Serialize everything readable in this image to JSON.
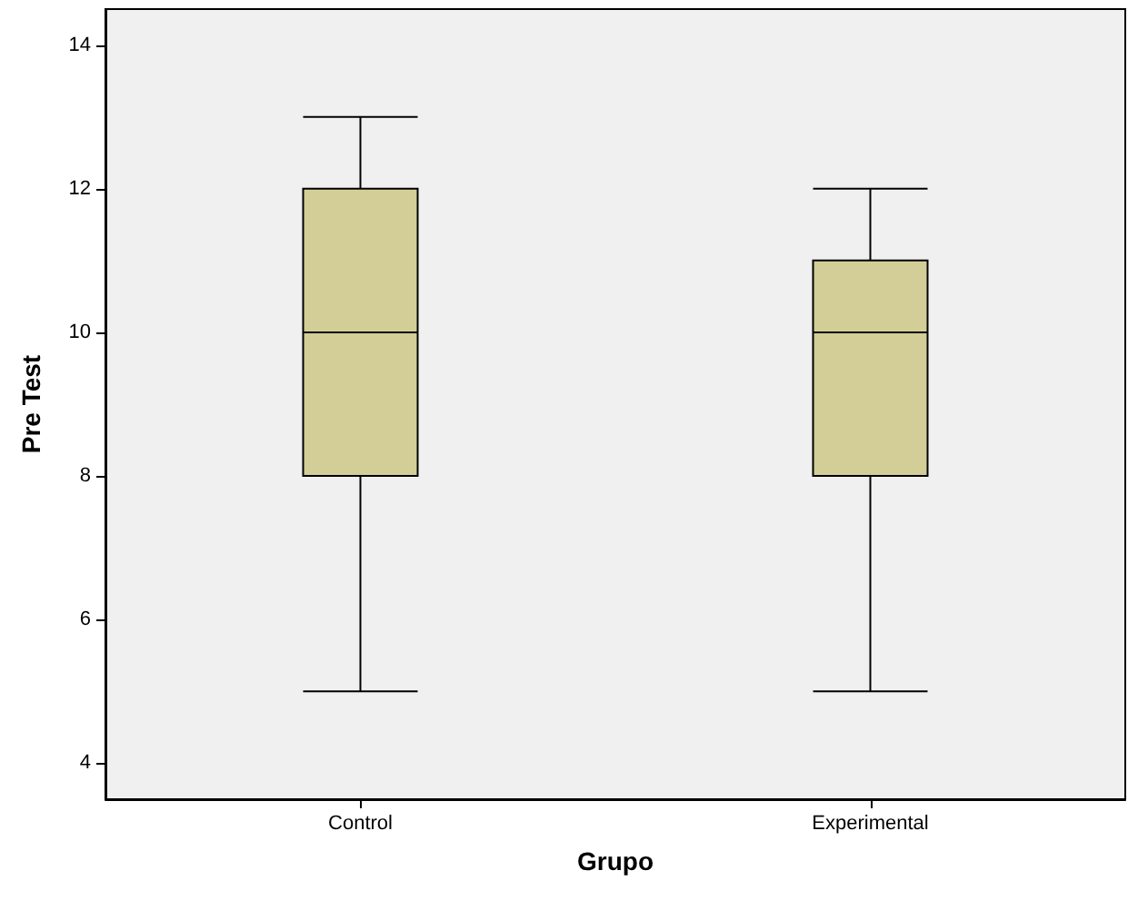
{
  "chart_data": {
    "type": "box",
    "xlabel": "Grupo",
    "ylabel": "Pre Test",
    "categories": [
      "Control",
      "Experimental"
    ],
    "series": [
      {
        "color": "#d3ce97",
        "boxes": [
          {
            "low": 5,
            "q1": 8,
            "median": 10,
            "q3": 12,
            "high": 13
          },
          {
            "low": 5,
            "q1": 8,
            "median": 10,
            "q3": 11,
            "high": 12
          }
        ]
      }
    ],
    "ylim": [
      3.5,
      14.5
    ],
    "yticks": [
      4,
      6,
      8,
      10,
      12,
      14
    ],
    "grid": false
  }
}
